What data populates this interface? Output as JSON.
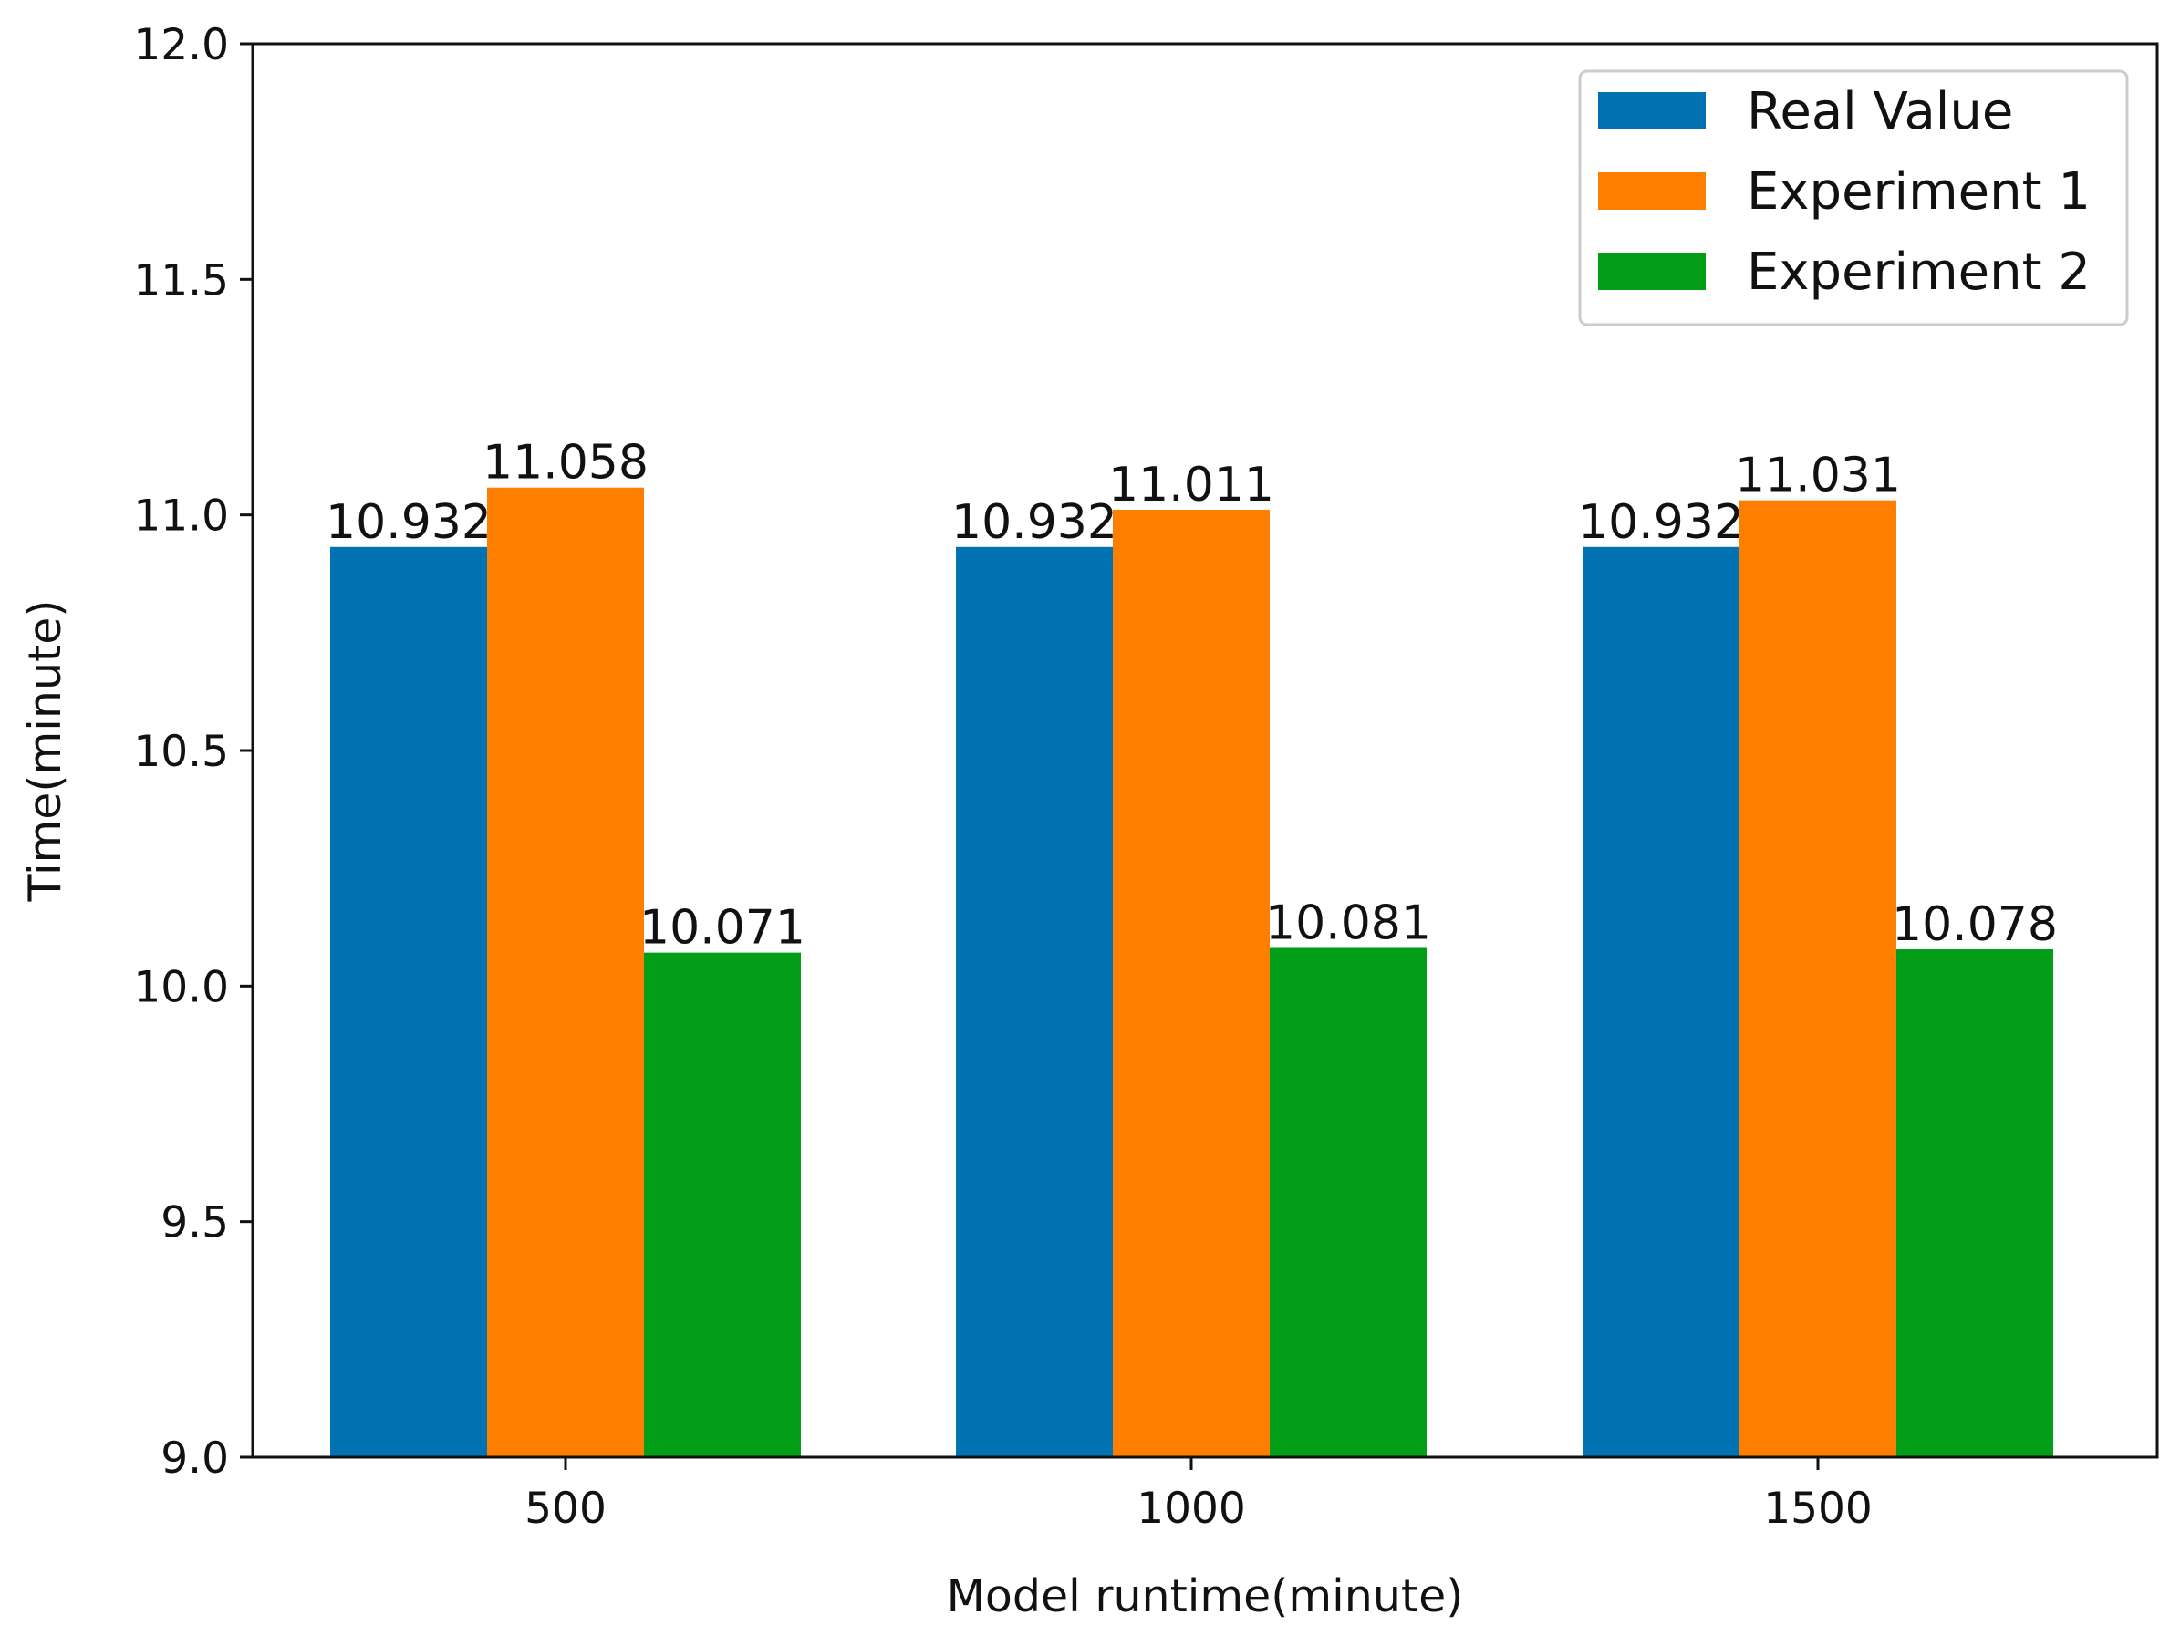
{
  "chart_data": {
    "type": "bar",
    "title": "",
    "xlabel": "Model runtime(minute)",
    "ylabel": "Time(minute)",
    "categories": [
      "500",
      "1000",
      "1500"
    ],
    "ylim": [
      9.0,
      12.0
    ],
    "yticks": [
      9.0,
      9.5,
      10.0,
      10.5,
      11.0,
      11.5,
      12.0
    ],
    "ytick_labels": [
      "9.0",
      "9.5",
      "10.0",
      "10.5",
      "11.0",
      "11.5",
      "12.0"
    ],
    "grid": false,
    "legend_position": "top-right",
    "series": [
      {
        "name": "Real Value",
        "color": "#0173b2",
        "values": [
          10.932,
          10.932,
          10.932
        ],
        "labels": [
          "10.932",
          "10.932",
          "10.932"
        ]
      },
      {
        "name": "Experiment 1",
        "color": "#fe7f00",
        "values": [
          11.058,
          11.011,
          11.031
        ],
        "labels": [
          "11.058",
          "11.011",
          "11.031"
        ]
      },
      {
        "name": "Experiment 2",
        "color": "#029e18",
        "values": [
          10.071,
          10.081,
          10.078
        ],
        "labels": [
          "10.071",
          "10.081",
          "10.078"
        ]
      }
    ]
  }
}
